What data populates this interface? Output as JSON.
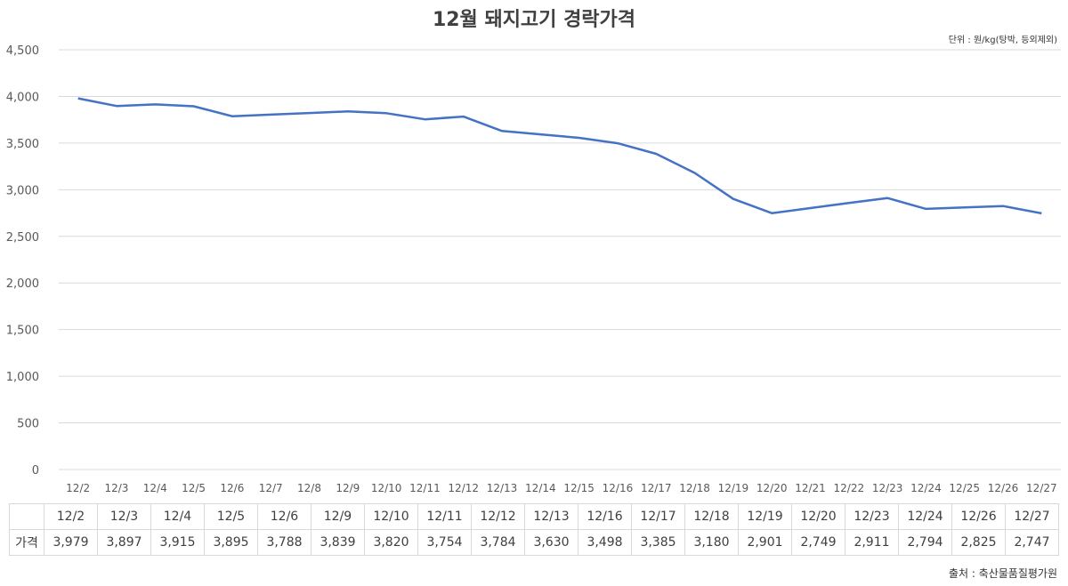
{
  "chart_data": {
    "type": "line",
    "title": "12월 돼지고기 경락가격",
    "unit_note": "단위 : 원/kg(탕박, 등외제외)",
    "source": "출처 : 축산물품질평가원",
    "ylim": [
      0,
      4500
    ],
    "yticks": [
      "0",
      "500",
      "1,000",
      "1,500",
      "2,000",
      "2,500",
      "3,000",
      "3,500",
      "4,000",
      "4,500"
    ],
    "categories": [
      "12/2",
      "12/3",
      "12/4",
      "12/5",
      "12/6",
      "12/7",
      "12/8",
      "12/9",
      "12/10",
      "12/11",
      "12/12",
      "12/13",
      "12/14",
      "12/15",
      "12/16",
      "12/17",
      "12/18",
      "12/19",
      "12/20",
      "12/21",
      "12/22",
      "12/23",
      "12/24",
      "12/25",
      "12/26",
      "12/27"
    ],
    "series": [
      {
        "name": "가격",
        "color": "#4472c4",
        "values": [
          3979,
          3897,
          3915,
          3895,
          3788,
          3805,
          3822,
          3839,
          3820,
          3754,
          3784,
          3630,
          3593,
          3556,
          3498,
          3385,
          3180,
          2901,
          2749,
          2803,
          2857,
          2911,
          2794,
          2810,
          2825,
          2747
        ]
      }
    ],
    "grid": true,
    "legend": "none"
  },
  "table": {
    "row_label": "가격",
    "headers": [
      "12/2",
      "12/3",
      "12/4",
      "12/5",
      "12/6",
      "12/9",
      "12/10",
      "12/11",
      "12/12",
      "12/13",
      "12/16",
      "12/17",
      "12/18",
      "12/19",
      "12/20",
      "12/23",
      "12/24",
      "12/26",
      "12/27"
    ],
    "values": [
      "3,979",
      "3,897",
      "3,915",
      "3,895",
      "3,788",
      "3,839",
      "3,820",
      "3,754",
      "3,784",
      "3,630",
      "3,498",
      "3,385",
      "3,180",
      "2,901",
      "2,749",
      "2,911",
      "2,794",
      "2,825",
      "2,747"
    ]
  }
}
